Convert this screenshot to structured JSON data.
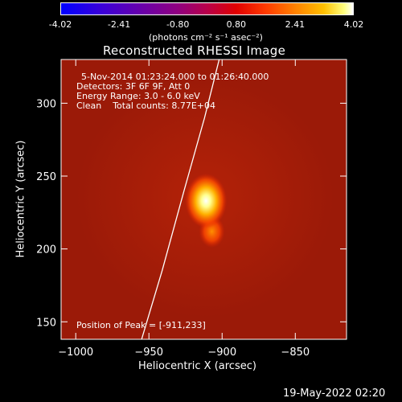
{
  "chart_data": {
    "type": "heatmap",
    "title": "Reconstructed RHESSI Image",
    "xlabel": "Heliocentric X (arcsec)",
    "ylabel": "Heliocentric Y (arcsec)",
    "xlim": [
      -1010,
      -815
    ],
    "ylim": [
      138,
      330
    ],
    "xticks": [
      -1000,
      -950,
      -900,
      -850
    ],
    "yticks": [
      150,
      200,
      250,
      300
    ],
    "colorbar": {
      "ticks": [
        "-4.02",
        "-2.41",
        "-0.80",
        "0.80",
        "2.41",
        "4.02"
      ],
      "range": [
        -4.02,
        4.02
      ],
      "units_label": "(photons cm⁻² s⁻¹ asec⁻²)"
    },
    "annotations": {
      "time": "5-Nov-2014 01:23:24.000 to 01:26:40.000",
      "detectors": "Detectors: 3F 6F 9F, Att 0",
      "energy": "Energy Range: 3.0 - 6.0 keV",
      "clean": "Clean    Total counts: 8.77E+04",
      "peak": "Position of Peak = [-911,233]"
    },
    "peak": {
      "x": -911,
      "y": 233
    },
    "sources": [
      {
        "x": -911,
        "y": 233,
        "amplitude": 4.02
      },
      {
        "x": -907,
        "y": 212,
        "amplitude": 2.2
      }
    ],
    "limb": [
      [
        -955,
        138
      ],
      [
        -941,
        185
      ],
      [
        -926,
        240
      ],
      [
        -912,
        290
      ],
      [
        -902,
        330
      ]
    ]
  },
  "footer": {
    "date": "19-May-2022 02:20"
  }
}
